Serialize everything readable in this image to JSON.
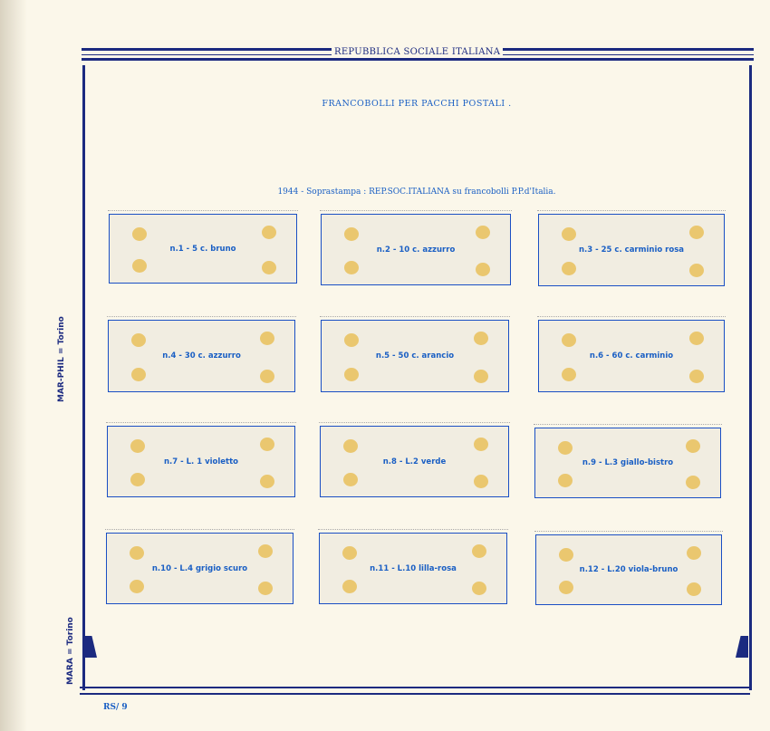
{
  "header": {
    "title": "REPUBBLICA SOCIALE ITALIANA",
    "subtitle": "FRANCOBOLLI PER PACCHI POSTALI .",
    "series": "1944 - Soprastampa : REP.SOC.ITALIANA su francobolli P.P.d'Italia."
  },
  "side": {
    "publisher_top": "MAR-PHIL = Torino",
    "publisher_bottom": "MARA = Torino"
  },
  "stamps": [
    {
      "label": "n.1 - 5 c. bruno"
    },
    {
      "label": "n.2 - 10 c. azzurro"
    },
    {
      "label": "n.3 - 25 c. carminio rosa"
    },
    {
      "label": "n.4 - 30 c. azzurro"
    },
    {
      "label": "n.5 - 50 c. arancio"
    },
    {
      "label": "n.6 - 60 c. carminio"
    },
    {
      "label": "n.7 - L. 1 violetto"
    },
    {
      "label": "n.8 - L.2 verde"
    },
    {
      "label": "n.9 - L.3 giallo-bistro"
    },
    {
      "label": "n.10 - L.4 grigio scuro"
    },
    {
      "label": "n.11 - L.10 lilla-rosa"
    },
    {
      "label": "n.12 - L.20 viola-bruno"
    }
  ],
  "footer": {
    "page": "RS/ 9"
  }
}
